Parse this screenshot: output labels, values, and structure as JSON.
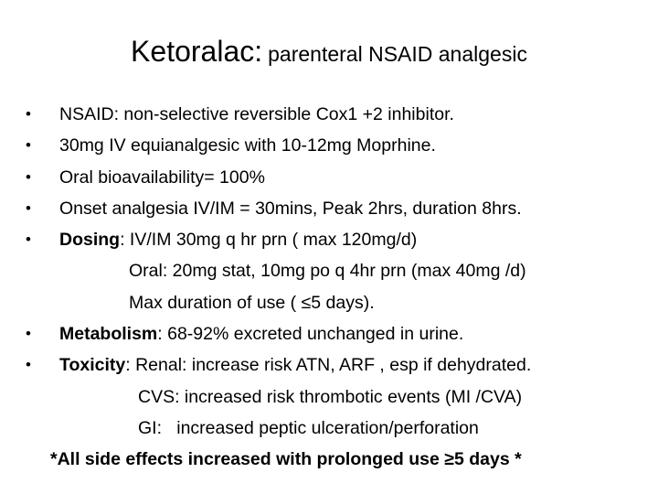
{
  "title": {
    "main": "Ketoralac:",
    "sub": "parenteral NSAID analgesic"
  },
  "bullet_char": "•",
  "bullets": [
    {
      "text": "NSAID: non-selective reversible Cox1 +2 inhibitor."
    },
    {
      "text": "30mg IV equianalgesic with 10-12mg Moprhine."
    },
    {
      "text": "Oral bioavailability= 100%"
    },
    {
      "text": "Onset analgesia IV/IM = 30mins, Peak 2hrs, duration 8hrs."
    },
    {
      "label": "Dosing",
      "text": ": IV/IM 30mg q hr prn ( max 120mg/d)"
    }
  ],
  "dosing_continuation": [
    "Oral: 20mg stat, 10mg po q 4hr prn (max 40mg /d)",
    "Max duration of use ( ≤5 days)."
  ],
  "metabolism": {
    "label": "Metabolism",
    "text": ": 68-92% excreted unchanged in urine."
  },
  "toxicity": {
    "label": "Toxicity",
    "text": ": Renal: increase risk ATN, ARF , esp if dehydrated."
  },
  "toxicity_continuation": [
    "CVS: increased risk thrombotic events (MI /CVA)",
    "GI:   increased peptic ulceration/perforation"
  ],
  "footnote": "*All side effects increased with prolonged use ≥5 days *"
}
